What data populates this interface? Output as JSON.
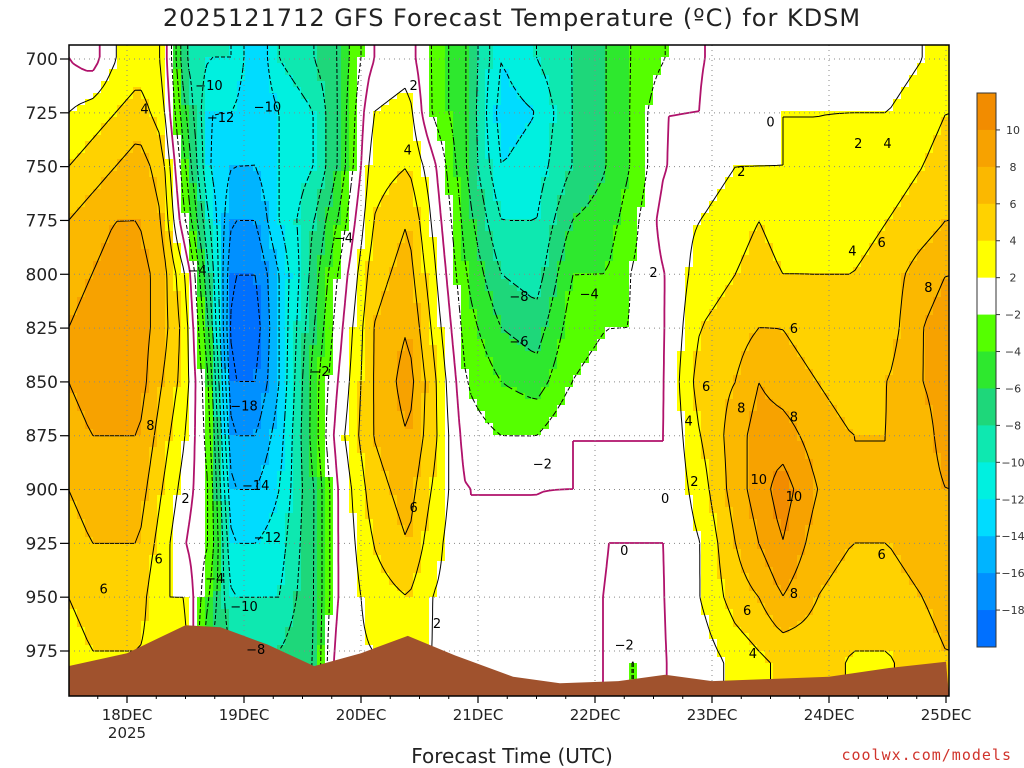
{
  "title": "2025121712 GFS Forecast Temperature (ºC) for KDSM",
  "credit": "coolwx.com/models",
  "colors": {
    "terrain": "#a0522d",
    "zero_line": "#b0126b",
    "contour": "#000000",
    "grid": "#888888"
  },
  "chart_data": {
    "type": "heatmap",
    "title": "2025121712 GFS Forecast Temperature (ºC) for KDSM",
    "xlabel": "Forecast Time (UTC)",
    "ylabel": "",
    "y_ticks": [
      700,
      725,
      750,
      775,
      800,
      825,
      850,
      875,
      900,
      925,
      950,
      975
    ],
    "y_range": [
      700,
      990
    ],
    "x_ticks": [
      {
        "label": "18DEC",
        "sublabel": "2025",
        "day": 18
      },
      {
        "label": "19DEC",
        "sublabel": "",
        "day": 19
      },
      {
        "label": "20DEC",
        "sublabel": "",
        "day": 20
      },
      {
        "label": "21DEC",
        "sublabel": "",
        "day": 21
      },
      {
        "label": "22DEC",
        "sublabel": "",
        "day": 22
      },
      {
        "label": "23DEC",
        "sublabel": "",
        "day": 23
      },
      {
        "label": "24DEC",
        "sublabel": "",
        "day": 24
      },
      {
        "label": "25DEC",
        "sublabel": "",
        "day": 25
      }
    ],
    "x_range": [
      17.5,
      25
    ],
    "grid": true,
    "colorbar": {
      "levels": [
        12,
        10,
        8,
        6,
        4,
        2,
        -2,
        -4,
        -6,
        -8,
        -10,
        -12,
        -14,
        -16,
        -18,
        -20
      ],
      "labels": [
        "10",
        "8",
        "6",
        "4",
        "2",
        "−2",
        "−4",
        "−6",
        "−8",
        "−10",
        "−12",
        "−14",
        "−16",
        "−18"
      ],
      "colors": [
        "#f28c00",
        "#f7a200",
        "#fbb800",
        "#ffd200",
        "#ffff00",
        "#ffffff",
        "#55ff00",
        "#2ee82e",
        "#1ed77a",
        "#0ee8b0",
        "#00f0e0",
        "#00dcff",
        "#00b4ff",
        "#0090ff",
        "#0070ff"
      ]
    },
    "temperature_columns": [
      {
        "day": 17.5,
        "t": [
          0,
          2,
          4,
          6,
          7,
          8,
          8,
          7,
          6,
          5,
          4,
          3
        ]
      },
      {
        "day": 17.7,
        "t": [
          -1,
          3,
          5,
          7,
          8,
          9,
          9,
          8,
          7,
          6,
          5,
          4
        ]
      },
      {
        "day": 17.9,
        "t": [
          2,
          4,
          6,
          8,
          9,
          10,
          9,
          8,
          7,
          6,
          5,
          4
        ]
      },
      {
        "day": 18.1,
        "t": [
          3,
          5,
          7,
          8,
          9,
          9,
          9,
          8,
          7,
          6,
          5,
          4
        ]
      },
      {
        "day": 18.3,
        "t": [
          2,
          3,
          5,
          6,
          7,
          7,
          6,
          5,
          4,
          3,
          2,
          3
        ]
      },
      {
        "day": 18.5,
        "t": [
          -8,
          -6,
          -4,
          -2,
          2,
          3,
          3,
          2,
          1,
          0,
          2,
          3
        ]
      },
      {
        "day": 18.7,
        "t": [
          -10,
          -12,
          -12,
          -10,
          -8,
          -6,
          -4,
          -3,
          -2,
          -2,
          -4,
          -6
        ]
      },
      {
        "day": 18.9,
        "t": [
          -10,
          -12,
          -14,
          -16,
          -18,
          -19,
          -18,
          -16,
          -14,
          -12,
          -10,
          -8
        ]
      },
      {
        "day": 19.1,
        "t": [
          -14,
          -14,
          -14,
          -16,
          -18,
          -19,
          -18,
          -16,
          -14,
          -12,
          -10,
          -8
        ]
      },
      {
        "day": 19.3,
        "t": [
          -10,
          -12,
          -12,
          -12,
          -14,
          -14,
          -14,
          -13,
          -12,
          -11,
          -10,
          -8
        ]
      },
      {
        "day": 19.6,
        "t": [
          -8,
          -10,
          -10,
          -8,
          -7,
          -6,
          -5,
          -5,
          -6,
          -6,
          -6,
          -6
        ]
      },
      {
        "day": 19.8,
        "t": [
          -6,
          -6,
          -6,
          -4,
          -2,
          -1,
          0,
          1,
          0,
          0,
          0,
          1
        ]
      },
      {
        "day": 20.1,
        "t": [
          0,
          2,
          3,
          4,
          5,
          6,
          6,
          6,
          5,
          4,
          3,
          2
        ]
      },
      {
        "day": 20.4,
        "t": [
          1,
          3,
          4,
          6,
          7,
          8,
          9,
          8,
          7,
          6,
          4,
          3
        ]
      },
      {
        "day": 20.6,
        "t": [
          -2,
          -2,
          1,
          2,
          3,
          4,
          5,
          5,
          4,
          3,
          2,
          2
        ]
      },
      {
        "day": 20.9,
        "t": [
          -6,
          -6,
          -6,
          -5,
          -4,
          -3,
          -2,
          -1,
          0,
          0,
          1,
          1
        ]
      },
      {
        "day": 21.2,
        "t": [
          -12,
          -13,
          -12,
          -10,
          -8,
          -6,
          -4,
          -2,
          0,
          0,
          1,
          1
        ]
      },
      {
        "day": 21.5,
        "t": [
          -10,
          -12,
          -11,
          -10,
          -9,
          -7,
          -5,
          -2,
          0,
          0,
          0,
          1
        ]
      },
      {
        "day": 21.8,
        "t": [
          -8,
          -8,
          -8,
          -6,
          -4,
          -3,
          -2,
          0,
          0,
          1,
          0,
          0
        ]
      },
      {
        "day": 22.1,
        "t": [
          -6,
          -6,
          -6,
          -5,
          -4,
          -2,
          -1,
          0,
          0,
          0,
          0,
          0
        ]
      },
      {
        "day": 22.3,
        "t": [
          -4,
          -4,
          -4,
          -3,
          -2,
          -2,
          -1,
          0,
          0,
          0,
          -1,
          -2
        ]
      },
      {
        "day": 22.6,
        "t": [
          -2,
          0,
          0,
          1,
          0,
          0,
          0,
          0,
          0,
          0,
          0,
          0
        ]
      },
      {
        "day": 22.9,
        "t": [
          0,
          0,
          1,
          2,
          3,
          4,
          5,
          4,
          3,
          2,
          2,
          1
        ]
      },
      {
        "day": 23.2,
        "t": [
          0,
          1,
          2,
          3,
          4,
          5,
          6,
          7,
          7,
          6,
          5,
          3
        ]
      },
      {
        "day": 23.4,
        "t": [
          1,
          1,
          2,
          4,
          5,
          6,
          8,
          9,
          9,
          8,
          6,
          4
        ]
      },
      {
        "day": 23.6,
        "t": [
          1,
          2,
          2,
          3,
          4,
          6,
          7,
          9,
          11,
          10,
          8,
          5
        ]
      },
      {
        "day": 23.9,
        "t": [
          1,
          2,
          2,
          3,
          4,
          5,
          6,
          7,
          8,
          7,
          6,
          5
        ]
      },
      {
        "day": 24.2,
        "t": [
          1,
          2,
          3,
          3,
          4,
          5,
          5,
          6,
          6,
          6,
          5,
          4
        ]
      },
      {
        "day": 24.5,
        "t": [
          1,
          2,
          3,
          4,
          5,
          5,
          6,
          6,
          6,
          6,
          5,
          4
        ]
      },
      {
        "day": 24.8,
        "t": [
          2,
          3,
          4,
          5,
          7,
          8,
          8,
          7,
          7,
          7,
          6,
          5
        ]
      },
      {
        "day": 25.0,
        "t": [
          3,
          4,
          5,
          6,
          8,
          9,
          9,
          9,
          8,
          8,
          7,
          6
        ]
      }
    ],
    "surface_pressure": [
      {
        "day": 17.5,
        "p": 982
      },
      {
        "day": 18.0,
        "p": 976
      },
      {
        "day": 18.5,
        "p": 963
      },
      {
        "day": 18.8,
        "p": 964
      },
      {
        "day": 19.2,
        "p": 972
      },
      {
        "day": 19.6,
        "p": 982
      },
      {
        "day": 20.0,
        "p": 976
      },
      {
        "day": 20.4,
        "p": 968
      },
      {
        "day": 20.8,
        "p": 977
      },
      {
        "day": 21.3,
        "p": 987
      },
      {
        "day": 21.7,
        "p": 990
      },
      {
        "day": 22.2,
        "p": 989
      },
      {
        "day": 22.6,
        "p": 986
      },
      {
        "day": 23.0,
        "p": 989
      },
      {
        "day": 23.5,
        "p": 988
      },
      {
        "day": 24.0,
        "p": 987
      },
      {
        "day": 24.5,
        "p": 983
      },
      {
        "day": 25.0,
        "p": 980
      }
    ],
    "annotations": [
      {
        "text": "4",
        "day": 18.15,
        "p": 723
      },
      {
        "text": "8",
        "day": 18.2,
        "p": 870
      },
      {
        "text": "2",
        "day": 18.5,
        "p": 904
      },
      {
        "text": "6",
        "day": 18.27,
        "p": 932
      },
      {
        "text": "6",
        "day": 17.8,
        "p": 946
      },
      {
        "text": "−10",
        "day": 18.7,
        "p": 712
      },
      {
        "text": "−12",
        "day": 18.8,
        "p": 727
      },
      {
        "text": "−10",
        "day": 19.2,
        "p": 722
      },
      {
        "text": "−4",
        "day": 18.6,
        "p": 798
      },
      {
        "text": "−18",
        "day": 19.0,
        "p": 861
      },
      {
        "text": "−14",
        "day": 19.1,
        "p": 898
      },
      {
        "text": "−12",
        "day": 19.2,
        "p": 922
      },
      {
        "text": "−4",
        "day": 18.75,
        "p": 941
      },
      {
        "text": "−10",
        "day": 19.0,
        "p": 954
      },
      {
        "text": "−8",
        "day": 19.1,
        "p": 974
      },
      {
        "text": "−2",
        "day": 19.65,
        "p": 845
      },
      {
        "text": "−4",
        "day": 19.85,
        "p": 783
      },
      {
        "text": "2",
        "day": 20.45,
        "p": 712
      },
      {
        "text": "4",
        "day": 20.4,
        "p": 742
      },
      {
        "text": "6",
        "day": 20.45,
        "p": 908
      },
      {
        "text": "2",
        "day": 20.65,
        "p": 962
      },
      {
        "text": "−8",
        "day": 21.35,
        "p": 810
      },
      {
        "text": "−6",
        "day": 21.35,
        "p": 831
      },
      {
        "text": "−4",
        "day": 21.95,
        "p": 809
      },
      {
        "text": "−2",
        "day": 21.55,
        "p": 888
      },
      {
        "text": "0",
        "day": 22.6,
        "p": 904
      },
      {
        "text": "0",
        "day": 22.25,
        "p": 928
      },
      {
        "text": "−2",
        "day": 22.25,
        "p": 972
      },
      {
        "text": "2",
        "day": 22.5,
        "p": 799
      },
      {
        "text": "0",
        "day": 23.5,
        "p": 729
      },
      {
        "text": "2",
        "day": 23.25,
        "p": 752
      },
      {
        "text": "2",
        "day": 24.25,
        "p": 739
      },
      {
        "text": "4",
        "day": 24.5,
        "p": 739
      },
      {
        "text": "4",
        "day": 24.2,
        "p": 789
      },
      {
        "text": "6",
        "day": 24.45,
        "p": 785
      },
      {
        "text": "8",
        "day": 24.85,
        "p": 806
      },
      {
        "text": "6",
        "day": 23.7,
        "p": 825
      },
      {
        "text": "6",
        "day": 22.95,
        "p": 852
      },
      {
        "text": "4",
        "day": 22.8,
        "p": 868
      },
      {
        "text": "8",
        "day": 23.25,
        "p": 862
      },
      {
        "text": "8",
        "day": 23.7,
        "p": 866
      },
      {
        "text": "2",
        "day": 22.85,
        "p": 896
      },
      {
        "text": "10",
        "day": 23.4,
        "p": 895
      },
      {
        "text": "10",
        "day": 23.7,
        "p": 903
      },
      {
        "text": "8",
        "day": 23.7,
        "p": 948
      },
      {
        "text": "6",
        "day": 23.3,
        "p": 956
      },
      {
        "text": "6",
        "day": 24.45,
        "p": 930
      },
      {
        "text": "4",
        "day": 23.35,
        "p": 976
      }
    ]
  }
}
